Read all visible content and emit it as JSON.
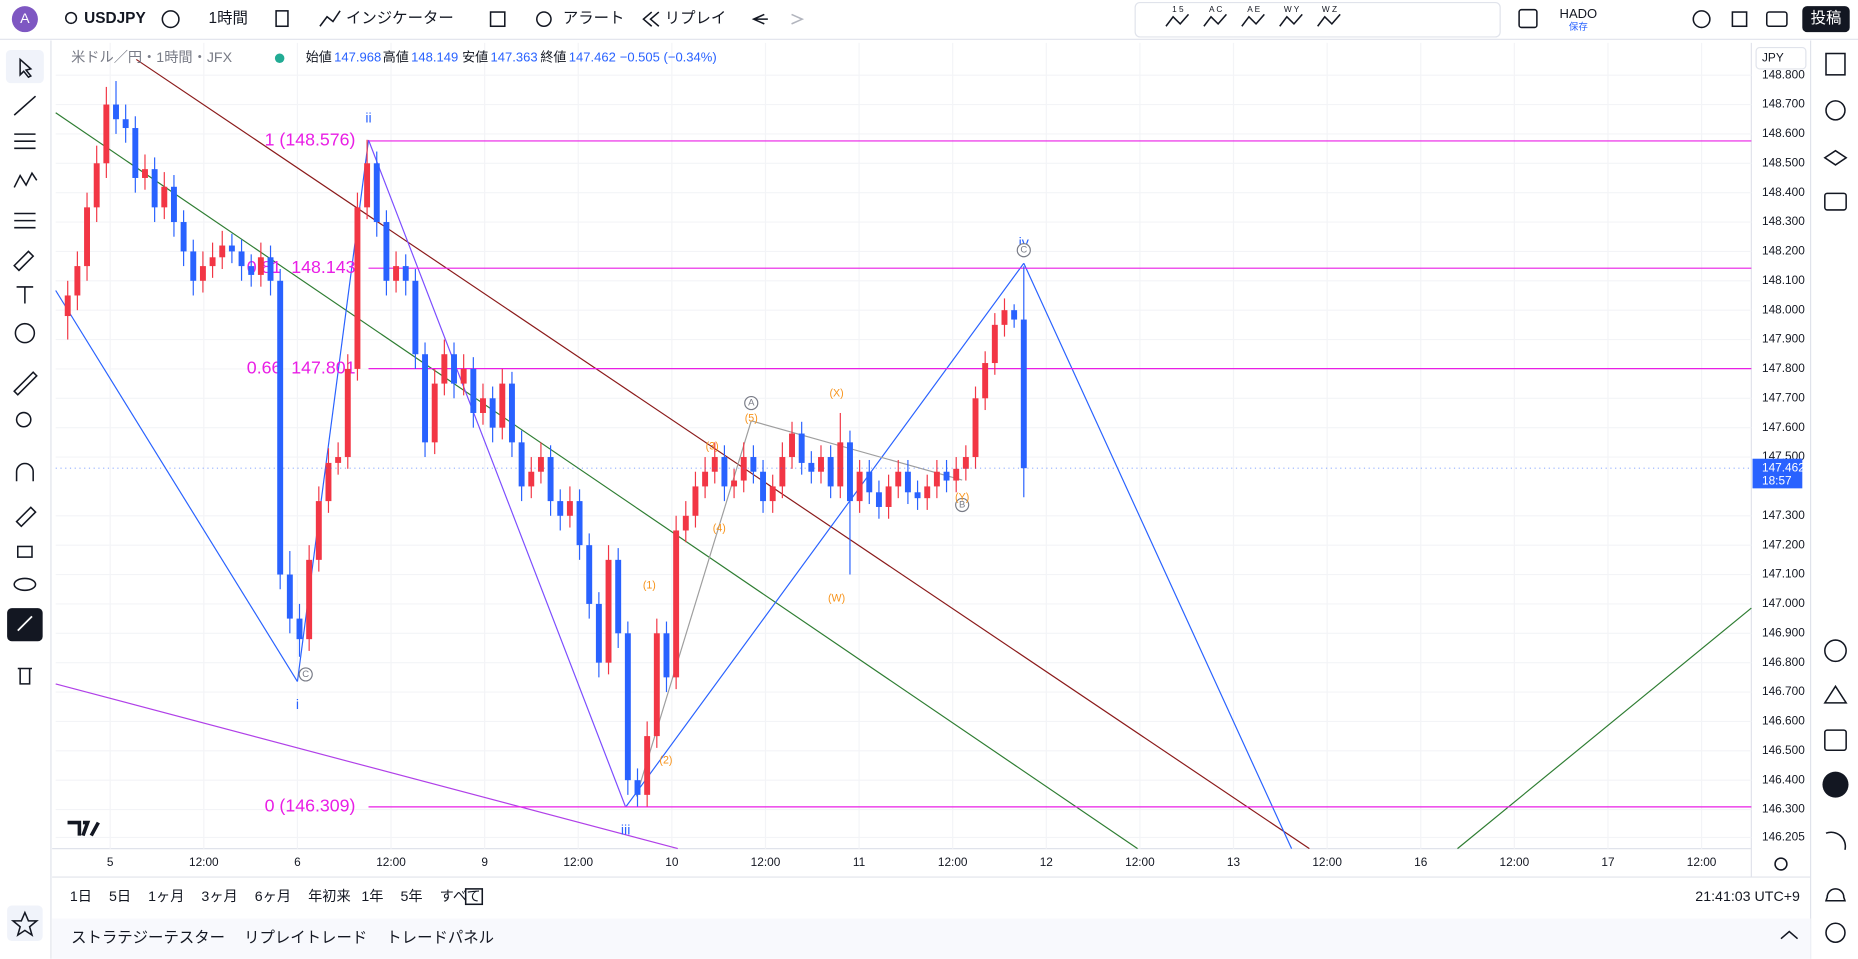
{
  "toolbar": {
    "avatar": "A",
    "symbol": "USDJPY",
    "interval": "1時間",
    "indicators": "インジケーター",
    "alert": "アラート",
    "replay": "リプレイ",
    "pattern_tools": [
      "1 5",
      "A C",
      "A E",
      "W Y",
      "W Z"
    ],
    "layout_name": "HADO",
    "layout_status": "保存",
    "publish": "投稿"
  },
  "legend": {
    "title": "米ドル／円・1時間・JFX",
    "open_label": "始値",
    "high_label": "高値",
    "low_label": "安値",
    "close_label": "終値",
    "change": "−0.505 (−0.34%)"
  },
  "currency": "JPY",
  "countdown": "18:57",
  "chart_data": {
    "type": "candlestick",
    "up_color": "#f23645",
    "down_color": "#2962ff",
    "ohlc": [
      [
        147.98,
        148.1,
        147.9,
        148.05
      ],
      [
        148.05,
        148.2,
        148.0,
        148.15
      ],
      [
        148.15,
        148.4,
        148.1,
        148.35
      ],
      [
        148.35,
        148.56,
        148.3,
        148.5
      ],
      [
        148.5,
        148.76,
        148.45,
        148.7
      ],
      [
        148.7,
        148.78,
        148.6,
        148.65
      ],
      [
        148.65,
        148.7,
        148.57,
        148.62
      ],
      [
        148.62,
        148.66,
        148.4,
        148.45
      ],
      [
        148.45,
        148.53,
        148.41,
        148.48
      ],
      [
        148.48,
        148.52,
        148.3,
        148.35
      ],
      [
        148.35,
        148.47,
        148.31,
        148.42
      ],
      [
        148.42,
        148.46,
        148.25,
        148.3
      ],
      [
        148.3,
        148.34,
        148.15,
        148.2
      ],
      [
        148.2,
        148.24,
        148.05,
        148.1
      ],
      [
        148.1,
        148.2,
        148.06,
        148.15
      ],
      [
        148.15,
        148.23,
        148.11,
        148.18
      ],
      [
        148.18,
        148.27,
        148.14,
        148.22
      ],
      [
        148.22,
        148.26,
        148.16,
        148.2
      ],
      [
        148.2,
        148.24,
        148.1,
        148.15
      ],
      [
        148.15,
        148.19,
        148.08,
        148.12
      ],
      [
        148.12,
        148.23,
        148.08,
        148.18
      ],
      [
        148.18,
        148.22,
        148.05,
        148.1
      ],
      [
        148.1,
        148.14,
        147.05,
        147.1
      ],
      [
        147.1,
        147.18,
        146.9,
        146.95
      ],
      [
        146.95,
        147.0,
        146.82,
        146.88
      ],
      [
        146.88,
        147.2,
        146.84,
        147.15
      ],
      [
        147.15,
        147.4,
        147.11,
        147.35
      ],
      [
        147.35,
        147.53,
        147.31,
        147.48
      ],
      [
        147.48,
        147.55,
        147.44,
        147.5
      ],
      [
        147.5,
        147.85,
        147.46,
        147.8
      ],
      [
        147.8,
        148.4,
        147.76,
        148.35
      ],
      [
        148.35,
        148.58,
        148.31,
        148.5
      ],
      [
        148.5,
        148.54,
        148.25,
        148.3
      ],
      [
        148.3,
        148.34,
        148.05,
        148.1
      ],
      [
        148.1,
        148.2,
        148.06,
        148.15
      ],
      [
        148.15,
        148.19,
        148.05,
        148.1
      ],
      [
        148.1,
        148.14,
        147.8,
        147.85
      ],
      [
        147.85,
        147.89,
        147.5,
        147.55
      ],
      [
        147.55,
        147.8,
        147.51,
        147.75
      ],
      [
        147.75,
        147.9,
        147.71,
        147.85
      ],
      [
        147.85,
        147.89,
        147.7,
        147.75
      ],
      [
        147.75,
        147.85,
        147.71,
        147.8
      ],
      [
        147.8,
        147.84,
        147.6,
        147.65
      ],
      [
        147.65,
        147.75,
        147.61,
        147.7
      ],
      [
        147.7,
        147.74,
        147.55,
        147.6
      ],
      [
        147.6,
        147.8,
        147.56,
        147.75
      ],
      [
        147.75,
        147.79,
        147.5,
        147.55
      ],
      [
        147.55,
        147.59,
        147.35,
        147.4
      ],
      [
        147.4,
        147.5,
        147.36,
        147.45
      ],
      [
        147.45,
        147.55,
        147.41,
        147.5
      ],
      [
        147.5,
        147.54,
        147.3,
        147.35
      ],
      [
        147.35,
        147.39,
        147.25,
        147.3
      ],
      [
        147.3,
        147.4,
        147.26,
        147.35
      ],
      [
        147.35,
        147.39,
        147.15,
        147.2
      ],
      [
        147.2,
        147.24,
        146.95,
        147.0
      ],
      [
        147.0,
        147.04,
        146.75,
        146.8
      ],
      [
        146.8,
        147.2,
        146.76,
        147.15
      ],
      [
        147.15,
        147.19,
        146.85,
        146.9
      ],
      [
        146.9,
        146.94,
        146.35,
        146.4
      ],
      [
        146.4,
        146.44,
        146.31,
        146.35
      ],
      [
        146.35,
        146.6,
        146.31,
        146.55
      ],
      [
        146.55,
        146.95,
        146.51,
        146.9
      ],
      [
        146.9,
        146.94,
        146.7,
        146.75
      ],
      [
        146.75,
        147.3,
        146.71,
        147.25
      ],
      [
        147.25,
        147.35,
        147.21,
        147.3
      ],
      [
        147.3,
        147.45,
        147.26,
        147.4
      ],
      [
        147.4,
        147.5,
        147.36,
        147.45
      ],
      [
        147.45,
        147.55,
        147.41,
        147.5
      ],
      [
        147.5,
        147.54,
        147.35,
        147.4
      ],
      [
        147.4,
        147.46,
        147.36,
        147.42
      ],
      [
        147.42,
        147.55,
        147.38,
        147.5
      ],
      [
        147.5,
        147.54,
        147.41,
        147.45
      ],
      [
        147.45,
        147.49,
        147.31,
        147.35
      ],
      [
        147.35,
        147.44,
        147.31,
        147.4
      ],
      [
        147.4,
        147.55,
        147.36,
        147.5
      ],
      [
        147.5,
        147.62,
        147.46,
        147.58
      ],
      [
        147.58,
        147.62,
        147.44,
        147.48
      ],
      [
        147.48,
        147.52,
        147.41,
        147.45
      ],
      [
        147.45,
        147.54,
        147.41,
        147.5
      ],
      [
        147.5,
        147.54,
        147.36,
        147.4
      ],
      [
        147.4,
        147.65,
        147.36,
        147.55
      ],
      [
        147.55,
        147.59,
        147.1,
        147.35
      ],
      [
        147.35,
        147.49,
        147.31,
        147.45
      ],
      [
        147.45,
        147.49,
        147.34,
        147.38
      ],
      [
        147.38,
        147.42,
        147.29,
        147.33
      ],
      [
        147.33,
        147.44,
        147.29,
        147.4
      ],
      [
        147.4,
        147.49,
        147.36,
        147.45
      ],
      [
        147.45,
        147.49,
        147.34,
        147.38
      ],
      [
        147.38,
        147.42,
        147.32,
        147.36
      ],
      [
        147.36,
        147.44,
        147.32,
        147.4
      ],
      [
        147.4,
        147.49,
        147.36,
        147.45
      ],
      [
        147.45,
        147.49,
        147.38,
        147.42
      ],
      [
        147.42,
        147.5,
        147.38,
        147.46
      ],
      [
        147.46,
        147.54,
        147.42,
        147.5
      ],
      [
        147.5,
        147.74,
        147.46,
        147.7
      ],
      [
        147.7,
        147.86,
        147.66,
        147.82
      ],
      [
        147.82,
        147.99,
        147.78,
        147.95
      ],
      [
        147.95,
        148.04,
        147.91,
        148.0
      ],
      [
        148.0,
        148.02,
        147.94,
        147.968
      ],
      [
        147.968,
        148.149,
        147.363,
        147.462
      ]
    ],
    "ylim": [
      146.167,
      148.91
    ],
    "yticks": [
      {
        "value": 148.8,
        "label": "148.800"
      },
      {
        "value": 148.7,
        "label": "148.700"
      },
      {
        "value": 148.6,
        "label": "148.600"
      },
      {
        "value": 148.5,
        "label": "148.500"
      },
      {
        "value": 148.4,
        "label": "148.400"
      },
      {
        "value": 148.3,
        "label": "148.300"
      },
      {
        "value": 148.2,
        "label": "148.200"
      },
      {
        "value": 148.1,
        "label": "148.100"
      },
      {
        "value": 148,
        "label": "148.000"
      },
      {
        "value": 147.9,
        "label": "147.900"
      },
      {
        "value": 147.8,
        "label": "147.800"
      },
      {
        "value": 147.7,
        "label": "147.700"
      },
      {
        "value": 147.6,
        "label": "147.600"
      },
      {
        "value": 147.5,
        "label": "147.500"
      },
      {
        "value": 147.3,
        "label": "147.300"
      },
      {
        "value": 147.2,
        "label": "147.200"
      },
      {
        "value": 147.1,
        "label": "147.100"
      },
      {
        "value": 147,
        "label": "147.000"
      },
      {
        "value": 146.9,
        "label": "146.900"
      },
      {
        "value": 146.8,
        "label": "146.800"
      },
      {
        "value": 146.7,
        "label": "146.700"
      },
      {
        "value": 146.6,
        "label": "146.600"
      },
      {
        "value": 146.5,
        "label": "146.500"
      },
      {
        "value": 146.4,
        "label": "146.400"
      },
      {
        "value": 146.3,
        "label": "146.300"
      },
      146.205
    ],
    "x_labels": [
      "5",
      "12:00",
      "6",
      "12:00",
      "9",
      "12:00",
      "10",
      "12:00",
      "11",
      "12:00",
      "12",
      "12:00",
      "13",
      "12:00",
      "16",
      "12:00",
      "17",
      "12:00"
    ],
    "fib_levels": [
      {
        "label": "1 (148.576)",
        "value": 148.576
      },
      {
        "label": "0.81  148.143",
        "value": 148.143
      },
      {
        "label": "0.66  147.801",
        "value": 147.801
      },
      {
        "label": "0 (146.309)",
        "value": 146.309
      }
    ],
    "fib_color": "#e91ee5",
    "wave_labels": [
      "ii",
      "i",
      "iii",
      "iv",
      "C",
      "C",
      "A",
      "B",
      "(1)",
      "(2)",
      "(3)",
      "(4)",
      "(5)",
      "(W)",
      "(X)",
      "(Y)"
    ]
  },
  "ranges": [
    "1日",
    "5日",
    "1ヶ月",
    "3ヶ月",
    "6ヶ月",
    "年初来",
    "1年",
    "5年",
    "すべて"
  ],
  "clock": "21:41:03 UTC+9",
  "bottom_tabs": [
    "ストラテジーテスター",
    "リプレイトレード",
    "トレードパネル"
  ]
}
